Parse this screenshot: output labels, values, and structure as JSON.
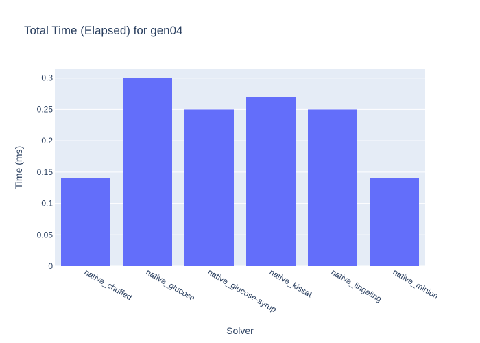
{
  "chart_data": {
    "type": "bar",
    "title": "Total Time (Elapsed) for gen04",
    "xlabel": "Solver",
    "ylabel": "Time (ms)",
    "categories": [
      "native_chuffed",
      "native_glucose",
      "native_glucose-syrup",
      "native_kissat",
      "native_lingeling",
      "native_minion"
    ],
    "values": [
      0.14,
      0.3,
      0.25,
      0.27,
      0.25,
      0.14
    ],
    "ylim": [
      0,
      0.315
    ],
    "yticks": [
      0,
      0.05,
      0.1,
      0.15,
      0.2,
      0.25,
      0.3
    ],
    "ytick_labels": [
      "0",
      "0.05",
      "0.1",
      "0.15",
      "0.2",
      "0.25",
      "0.3"
    ],
    "grid": true,
    "bar_color": "#636efa",
    "plot_background": "#e5ecf6",
    "text_color": "#2a3f5f"
  }
}
